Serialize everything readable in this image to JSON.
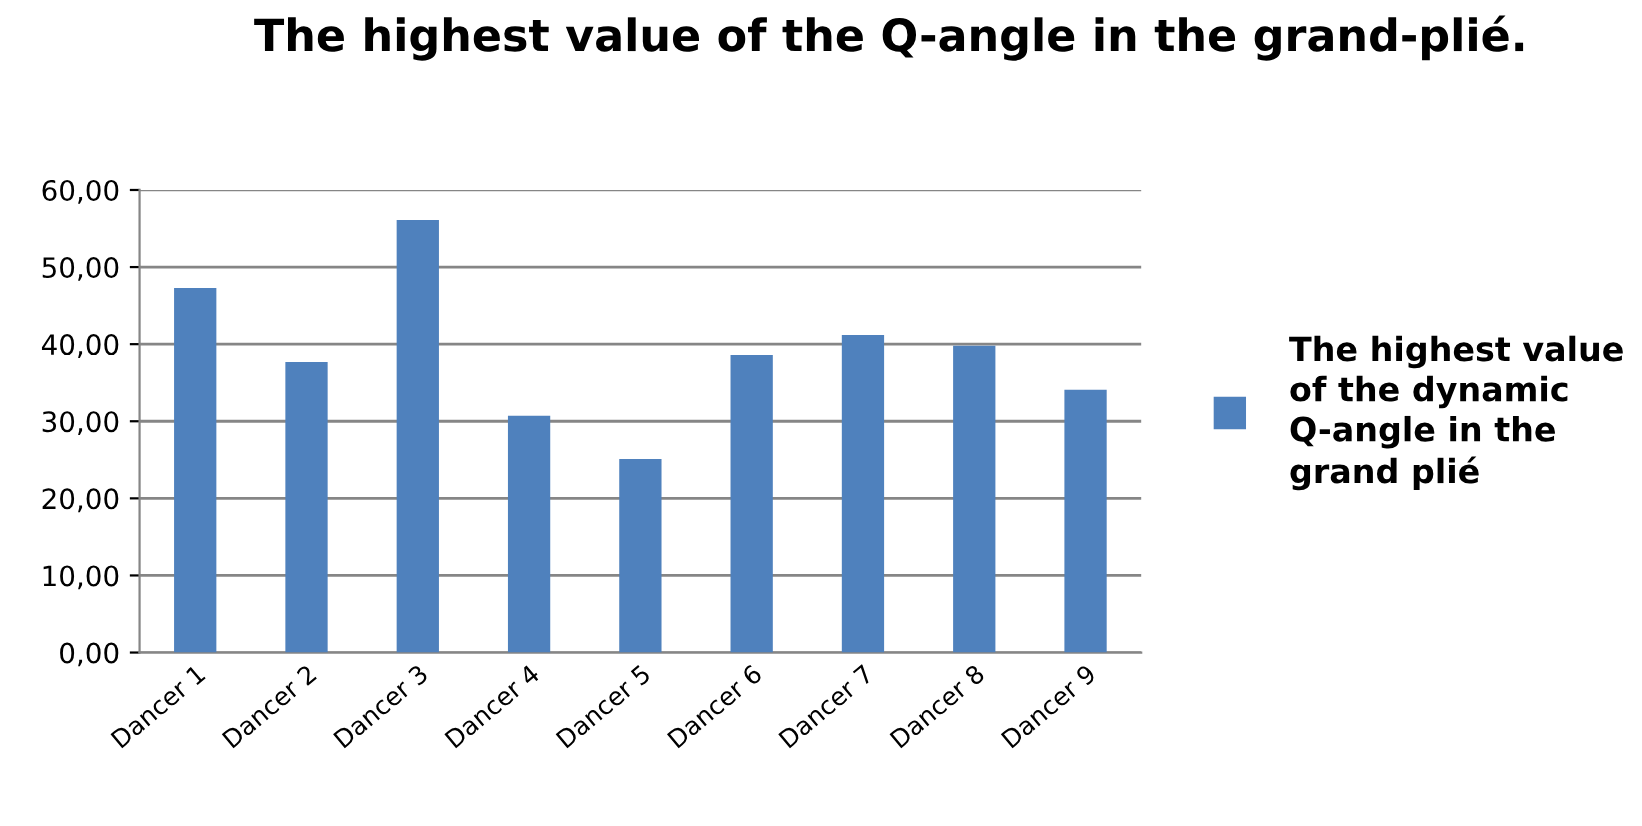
{
  "chart_data": {
    "type": "bar",
    "title": "The highest value of the Q-angle in the grand-plié.",
    "categories": [
      "Dancer 1",
      "Dancer 2",
      "Dancer 3",
      "Dancer 4",
      "Dancer 5",
      "Dancer 6",
      "Dancer 7",
      "Dancer 8",
      "Dancer 9"
    ],
    "series": [
      {
        "name": "The highest value of the dynamic Q-angle in the grand plié",
        "color": "#4f81bd",
        "values": [
          47.3,
          37.7,
          56.1,
          30.7,
          25.1,
          38.6,
          41.2,
          39.8,
          34.1
        ]
      }
    ],
    "ylim": [
      0,
      60
    ],
    "yticks": [
      {
        "value": 0,
        "label": "0,00"
      },
      {
        "value": 10,
        "label": "10,00"
      },
      {
        "value": 20,
        "label": "20,00"
      },
      {
        "value": 30,
        "label": "30,00"
      },
      {
        "value": 40,
        "label": "40,00"
      },
      {
        "value": 50,
        "label": "50,00"
      },
      {
        "value": 60,
        "label": "60,00"
      }
    ],
    "grid": "y",
    "legend": "right"
  }
}
